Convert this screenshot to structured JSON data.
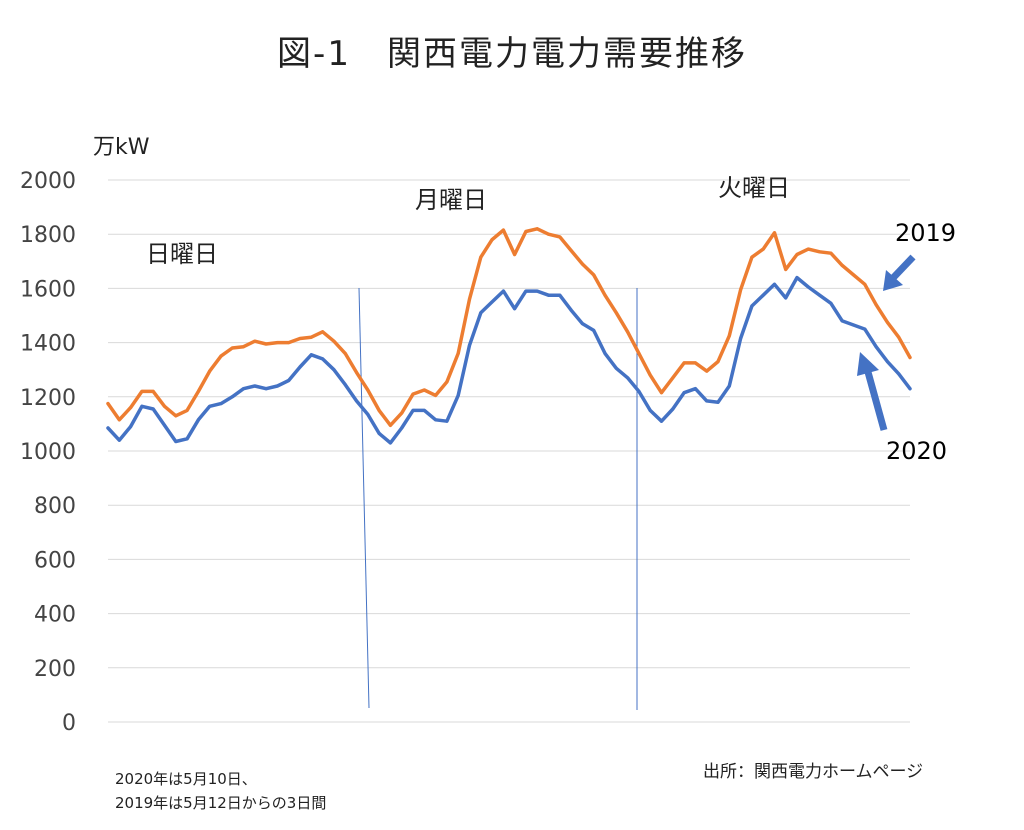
{
  "title": "図-1　関西電力電力需要推移",
  "note_lines": [
    "2020年は5月10日、",
    "2019年は5月12日からの3日間"
  ],
  "source": "出所：関西電力ホームページ",
  "chart_data": {
    "type": "line",
    "ylabel": "万kW",
    "ylim": [
      0,
      2000
    ],
    "yticks": [
      0,
      200,
      400,
      600,
      800,
      1000,
      1200,
      1400,
      1600,
      1800,
      2000
    ],
    "day_labels": [
      "日曜日",
      "月曜日",
      "火曜日"
    ],
    "series": [
      {
        "name": "2019",
        "color": "#ED7D31",
        "values": [
          1175,
          1115,
          1160,
          1220,
          1220,
          1165,
          1130,
          1150,
          1220,
          1295,
          1350,
          1380,
          1385,
          1405,
          1395,
          1400,
          1400,
          1415,
          1420,
          1440,
          1405,
          1360,
          1290,
          1225,
          1150,
          1095,
          1140,
          1210,
          1225,
          1205,
          1255,
          1360,
          1560,
          1715,
          1780,
          1815,
          1725,
          1810,
          1820,
          1800,
          1790,
          1740,
          1690,
          1650,
          1575,
          1510,
          1440,
          1360,
          1280,
          1215,
          1270,
          1325,
          1325,
          1295,
          1330,
          1425,
          1595,
          1715,
          1745,
          1805,
          1670,
          1725,
          1745,
          1735,
          1730,
          1685,
          1650,
          1615,
          1540,
          1475,
          1420,
          1345
        ]
      },
      {
        "name": "2020",
        "color": "#4472C4",
        "values": [
          1085,
          1040,
          1090,
          1165,
          1155,
          1095,
          1035,
          1045,
          1115,
          1165,
          1175,
          1200,
          1230,
          1240,
          1230,
          1240,
          1260,
          1310,
          1355,
          1340,
          1300,
          1245,
          1185,
          1135,
          1065,
          1030,
          1085,
          1150,
          1150,
          1115,
          1110,
          1205,
          1390,
          1510,
          1550,
          1590,
          1525,
          1590,
          1590,
          1575,
          1575,
          1520,
          1470,
          1445,
          1360,
          1305,
          1270,
          1220,
          1150,
          1110,
          1155,
          1215,
          1230,
          1185,
          1180,
          1240,
          1415,
          1535,
          1575,
          1615,
          1565,
          1640,
          1605,
          1575,
          1545,
          1480,
          1465,
          1450,
          1385,
          1330,
          1285,
          1230
        ]
      }
    ]
  }
}
